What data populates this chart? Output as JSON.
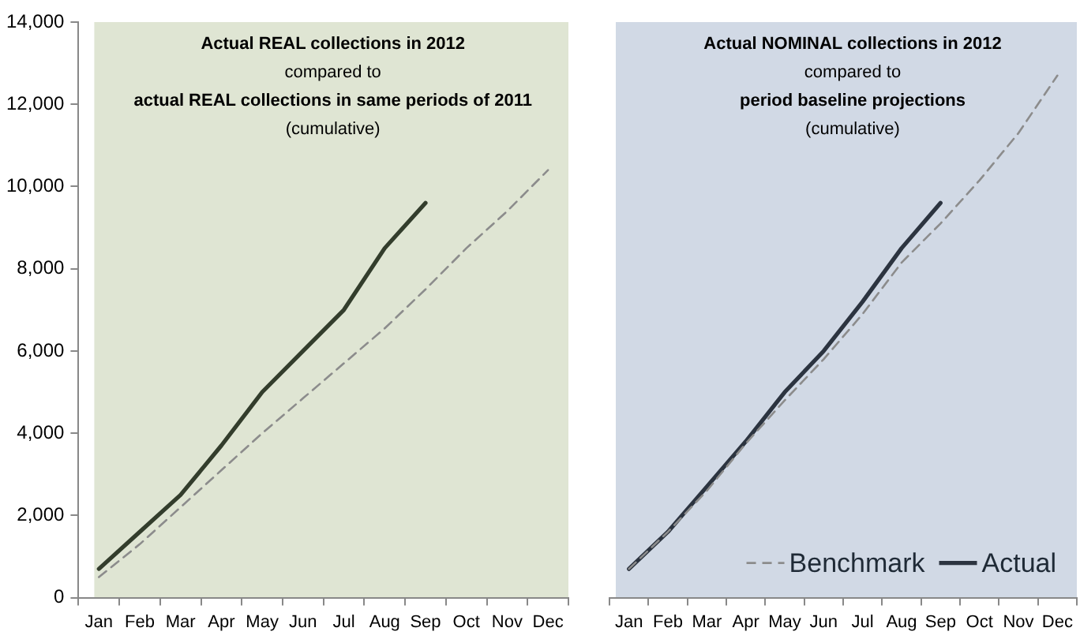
{
  "chart_data": [
    {
      "type": "line",
      "title": "Actual REAL collections in 2012",
      "subtitle": "compared to",
      "annotations": [
        "actual REAL collections in same periods of 2011",
        "(cumulative)"
      ],
      "categories": [
        "Jan",
        "Feb",
        "Mar",
        "Apr",
        "May",
        "Jun",
        "Jul",
        "Aug",
        "Sep",
        "Oct",
        "Nov",
        "Dec"
      ],
      "series": [
        {
          "color": "#8c8c8c",
          "line_style": "dashed",
          "values": [
            500,
            1300,
            2200,
            3100,
            4000,
            4850,
            5700,
            6550,
            7500,
            8500,
            9400,
            10400
          ]
        },
        {
          "color": "#333d2c",
          "line_style": "solid",
          "values": [
            700,
            1600,
            2500,
            3700,
            5000,
            6000,
            7000,
            8500,
            9600,
            null,
            null,
            null
          ]
        }
      ],
      "ylim": [
        0,
        14000
      ],
      "yticks": [
        {
          "value": 0,
          "label": "0"
        },
        {
          "value": 2000,
          "label": "2,000"
        },
        {
          "value": 4000,
          "label": "4,000"
        },
        {
          "value": 6000,
          "label": "6,000"
        },
        {
          "value": 8000,
          "label": "8,000"
        },
        {
          "value": 10000,
          "label": "10,000"
        },
        {
          "value": 12000,
          "label": "12,000"
        },
        {
          "value": 14000,
          "label": "14,000"
        }
      ],
      "grid": false,
      "legend": false,
      "marker": "none"
    },
    {
      "type": "line",
      "title": "Actual NOMINAL collections in 2012",
      "subtitle": "compared to",
      "annotations": [
        "period baseline projections",
        "(cumulative)"
      ],
      "categories": [
        "Jan",
        "Feb",
        "Mar",
        "Apr",
        "May",
        "Jun",
        "Jul",
        "Aug",
        "Sep",
        "Oct",
        "Nov",
        "Dec"
      ],
      "series": [
        {
          "name": "Benchmark",
          "color": "#8c8c8c",
          "line_style": "dashed",
          "values": [
            700,
            1600,
            2600,
            3750,
            4800,
            5800,
            6900,
            8150,
            9100,
            10150,
            11300,
            12700
          ]
        },
        {
          "name": "Actual",
          "color": "#2c3440",
          "line_style": "solid",
          "values": [
            700,
            1600,
            2700,
            3800,
            5000,
            6000,
            7200,
            8500,
            9600,
            null,
            null,
            null
          ]
        }
      ],
      "ylim": [
        0,
        14000
      ],
      "tick_labels": "x",
      "grid": false,
      "legend": "bottom right",
      "marker": "none"
    }
  ]
}
